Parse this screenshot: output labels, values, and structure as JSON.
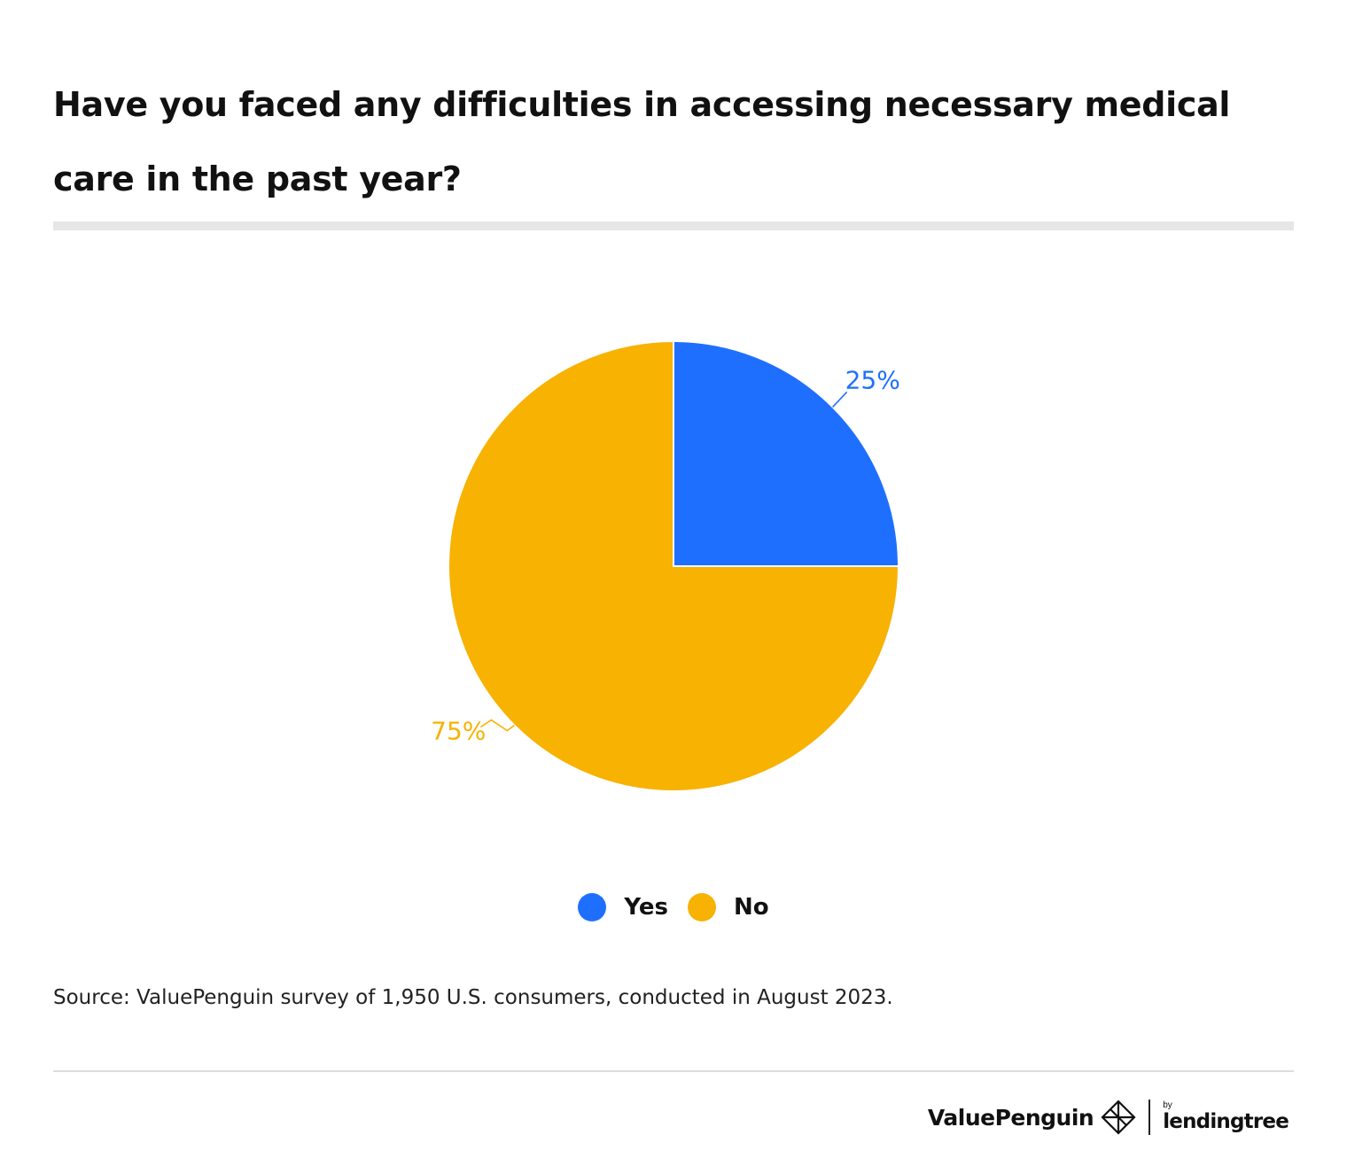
{
  "title": "Have you faced any difficulties in accessing necessary medical care in the past year?",
  "source": "Source: ValuePenguin survey of 1,950 U.S. consumers, conducted in August 2023.",
  "brand": {
    "name": "ValuePenguin",
    "by": "by",
    "partner": "lendingtree"
  },
  "chart_data": {
    "type": "pie",
    "categories": [
      "Yes",
      "No"
    ],
    "values": [
      25,
      75
    ],
    "labels": [
      "25%",
      "75%"
    ],
    "colors": [
      "#1f6fff",
      "#f7b202"
    ],
    "legend_position": "bottom"
  }
}
